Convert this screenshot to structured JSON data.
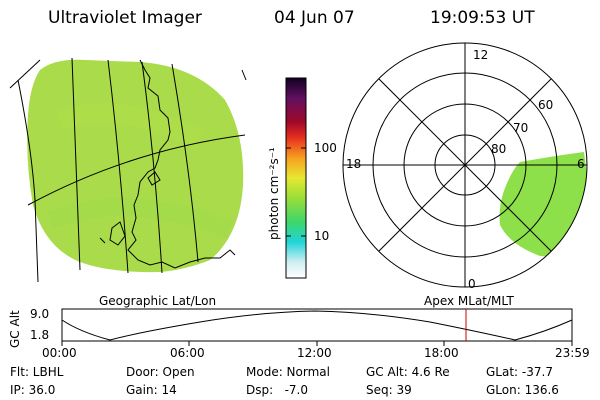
{
  "header": {
    "title": "Ultraviolet Imager",
    "date": "04 Jun 07",
    "time": "19:09:53 UT"
  },
  "colorbar": {
    "unit_label": "photon cm⁻²s⁻¹",
    "tick_labels": [
      "100",
      "10"
    ]
  },
  "polar_plot": {
    "hour_labels": {
      "top": "12",
      "left": "18",
      "right": "6",
      "bottom": "0"
    },
    "lat_labels": [
      "60",
      "70",
      "80"
    ]
  },
  "projection_labels": {
    "left": "Geographic Lat/Lon",
    "right": "Apex MLat/MLT"
  },
  "orbit_plot": {
    "ylabel": "GC Alt",
    "y_ticks": [
      "9.0",
      "1.8"
    ],
    "x_ticks": [
      "00:00",
      "06:00",
      "12:00",
      "18:00",
      "23:59"
    ],
    "marker_color": "#cc0000"
  },
  "info": {
    "row1": [
      {
        "label": "Flt: LBHL"
      },
      {
        "label": "Door: Open"
      },
      {
        "label": "Mode: Normal"
      },
      {
        "label": "GC Alt: 4.6 Re"
      },
      {
        "label": "GLat: -37.7"
      }
    ],
    "row2": [
      {
        "label": "IP: 36.0"
      },
      {
        "label": "Gain: 14"
      },
      {
        "label": "Dsp:   -7.0"
      },
      {
        "label": "Seq: 39"
      },
      {
        "label": "GLon: 136.6"
      }
    ]
  },
  "colors": {
    "auroral_fill": "#8ee04a",
    "earth_fill": "#a6dc4c"
  }
}
